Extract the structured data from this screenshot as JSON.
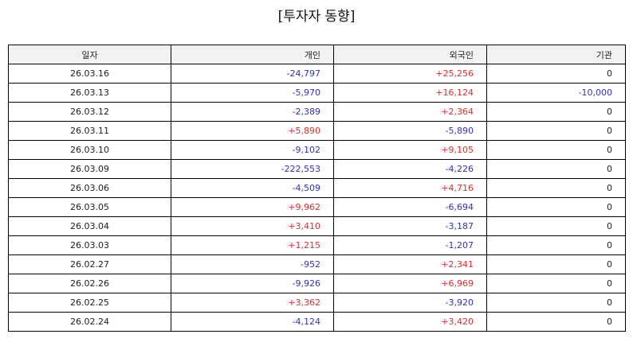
{
  "title": "[투자자 동향]",
  "columns": [
    "일자",
    "개인",
    "외국인",
    "기관"
  ],
  "colors": {
    "positive": "#e03030",
    "negative": "#3333bb",
    "neutral": "#222222"
  },
  "rows": [
    {
      "date": "26.03.16",
      "individual": "-24,797",
      "foreign": "+25,256",
      "institution": "0"
    },
    {
      "date": "26.03.13",
      "individual": "-5,970",
      "foreign": "+16,124",
      "institution": "-10,000"
    },
    {
      "date": "26.03.12",
      "individual": "-2,389",
      "foreign": "+2,364",
      "institution": "0"
    },
    {
      "date": "26.03.11",
      "individual": "+5,890",
      "foreign": "-5,890",
      "institution": "0"
    },
    {
      "date": "26.03.10",
      "individual": "-9,102",
      "foreign": "+9,105",
      "institution": "0"
    },
    {
      "date": "26.03.09",
      "individual": "-222,553",
      "foreign": "-4,226",
      "institution": "0"
    },
    {
      "date": "26.03.06",
      "individual": "-4,509",
      "foreign": "+4,716",
      "institution": "0"
    },
    {
      "date": "26.03.05",
      "individual": "+9,962",
      "foreign": "-6,694",
      "institution": "0"
    },
    {
      "date": "26.03.04",
      "individual": "+3,410",
      "foreign": "-3,187",
      "institution": "0"
    },
    {
      "date": "26.03.03",
      "individual": "+1,215",
      "foreign": "-1,207",
      "institution": "0"
    },
    {
      "date": "26.02.27",
      "individual": "-952",
      "foreign": "+2,341",
      "institution": "0"
    },
    {
      "date": "26.02.26",
      "individual": "-9,926",
      "foreign": "+6,969",
      "institution": "0"
    },
    {
      "date": "26.02.25",
      "individual": "+3,362",
      "foreign": "-3,920",
      "institution": "0"
    },
    {
      "date": "26.02.24",
      "individual": "-4,124",
      "foreign": "+3,420",
      "institution": "0"
    }
  ]
}
